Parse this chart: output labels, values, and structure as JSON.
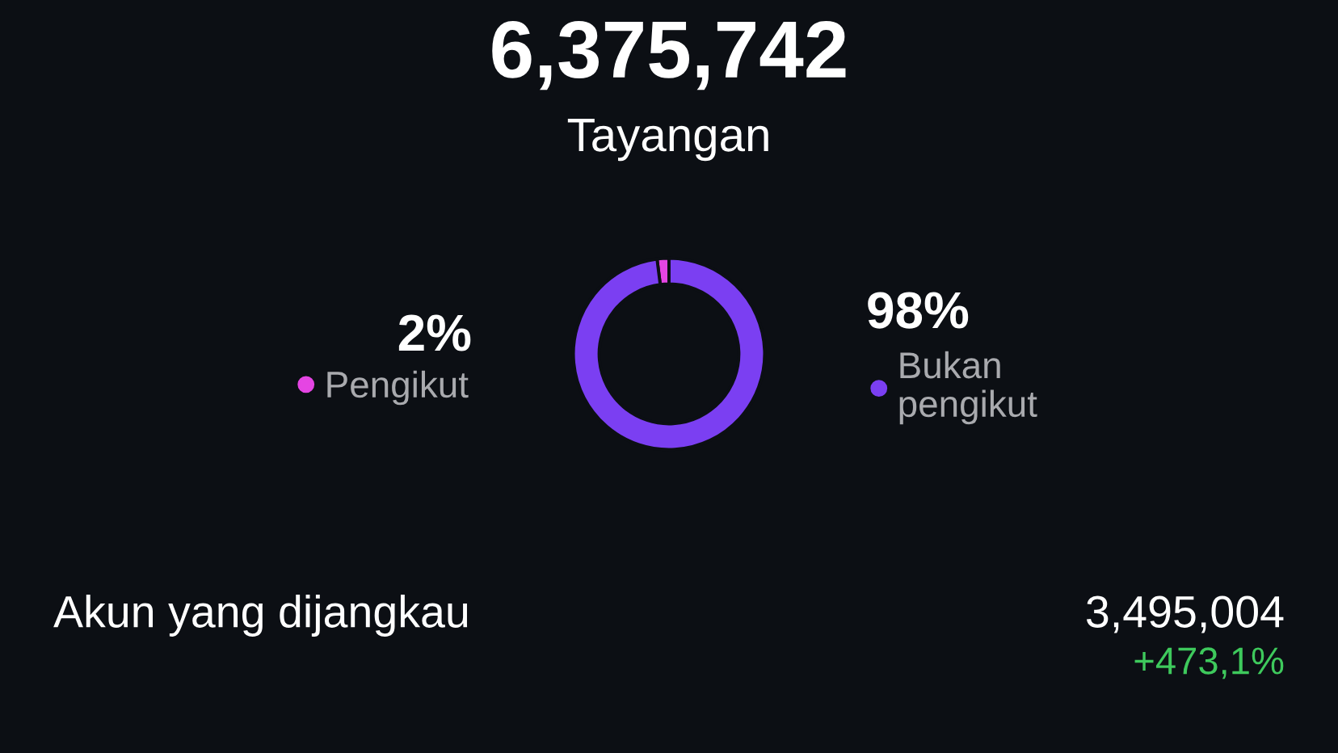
{
  "chart_data": {
    "type": "donut",
    "title": "6,375,742",
    "subtitle": "Tayangan",
    "categories": [
      "Pengikut",
      "Bukan pengikut"
    ],
    "values": [
      2,
      98
    ],
    "colors": [
      "#e545e3",
      "#7b3ff2"
    ],
    "value_labels": [
      "2%",
      "98%"
    ],
    "legend": "center",
    "annotations": [
      "Akun yang dijangkau",
      "3,495,004",
      "+473,1%"
    ]
  }
}
